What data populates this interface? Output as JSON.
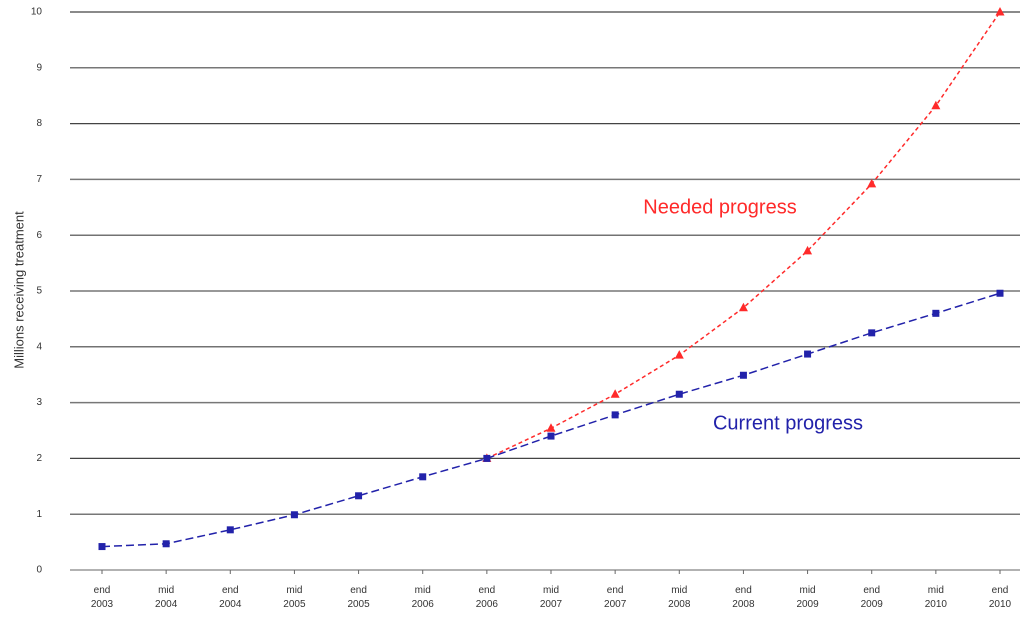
{
  "chart_data": {
    "type": "line",
    "y_label": "Millions receiving treatment",
    "categories": [
      "end 2003",
      "mid 2004",
      "end 2004",
      "mid 2005",
      "end 2005",
      "mid 2006",
      "end 2006",
      "mid 2007",
      "end 2007",
      "mid 2008",
      "end 2008",
      "mid 2009",
      "end 2009",
      "mid 2010",
      "end 2010"
    ],
    "series": [
      {
        "name": "Needed progress",
        "color": "#ff2a2a",
        "marker": "triangle",
        "values": [
          null,
          null,
          null,
          null,
          null,
          null,
          2.0,
          2.54,
          3.15,
          3.85,
          4.7,
          5.72,
          6.92,
          8.32,
          10.0
        ]
      },
      {
        "name": "Current progress",
        "color": "#2222aa",
        "marker": "square",
        "values": [
          0.42,
          0.47,
          0.72,
          0.99,
          1.33,
          1.67,
          2.0,
          2.4,
          2.78,
          3.15,
          3.49,
          3.87,
          4.25,
          4.6,
          4.96
        ]
      }
    ],
    "ylim": [
      0,
      10
    ],
    "yticks": [
      0,
      1,
      2,
      3,
      4,
      5,
      6,
      7,
      8,
      9,
      10
    ],
    "grid": true
  }
}
